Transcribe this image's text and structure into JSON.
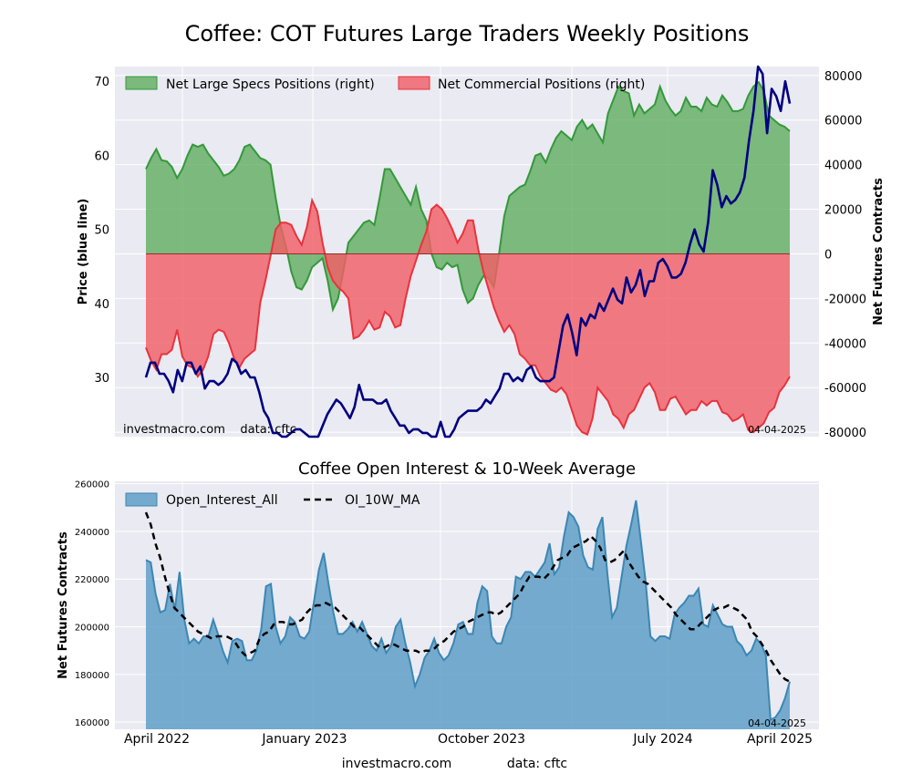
{
  "figure": {
    "title": "Coffee: COT Futures Large Traders Weekly Positions",
    "footer_site": "investmacro.com",
    "footer_source": "data: cftc"
  },
  "chart_data": [
    {
      "type": "area",
      "title": "Coffee: COT Futures Large Traders Weekly Positions",
      "ylabel_left": "Price (blue line)",
      "ylabel_right": "Net Futures Contracts",
      "ylim_left": [
        22,
        72
      ],
      "ylim_right": [
        -82000,
        84000
      ],
      "yticks_left": [
        "30",
        "40",
        "50",
        "60",
        "70"
      ],
      "yticks_right": [
        "-80000",
        "-60000",
        "-40000",
        "-20000",
        "0",
        "20000",
        "40000",
        "60000",
        "80000"
      ],
      "x_range": [
        "2022-03-18",
        "2025-04-04"
      ],
      "legend": [
        "Net Large Specs Positions (right)",
        "Net Commercial Positions (right)"
      ],
      "legend_placement": "top-left",
      "watermark": "investmacro.com    data: cftc",
      "date_label": "04-04-2025",
      "grid": true,
      "colors": {
        "specs": "#55a855",
        "commercials": "#f25f66",
        "price": "#000080"
      },
      "series": [
        {
          "name": "Net Large Specs Positions (right)",
          "values": [
            38000,
            43000,
            47000,
            42000,
            41500,
            39000,
            34000,
            38000,
            44000,
            49000,
            48000,
            49000,
            45000,
            42000,
            39000,
            35000,
            36000,
            38000,
            42000,
            48000,
            49000,
            46000,
            43000,
            42000,
            40000,
            25000,
            12000,
            3000,
            -8000,
            -15000,
            -16000,
            -12000,
            -6000,
            -4000,
            -2000,
            -12000,
            -25000,
            -20000,
            -8000,
            5000,
            8000,
            11000,
            14000,
            15000,
            13000,
            25000,
            38000,
            38000,
            34000,
            30000,
            26000,
            22000,
            30000,
            20000,
            15000,
            0,
            -6000,
            -7000,
            -4000,
            -6000,
            -5000,
            -16000,
            -22000,
            -20000,
            -14000,
            -10000,
            -11000,
            -15000,
            0,
            17000,
            26000,
            28000,
            30000,
            31000,
            37000,
            44000,
            45000,
            41000,
            47000,
            52000,
            55000,
            53000,
            51000,
            57000,
            60000,
            56000,
            58000,
            54000,
            50000,
            63000,
            69000,
            75000,
            73000,
            72000,
            62000,
            67000,
            63000,
            65000,
            67000,
            75000,
            69000,
            65000,
            62000,
            64000,
            70000,
            66000,
            66000,
            64000,
            70000,
            67000,
            66000,
            71000,
            68000,
            64000,
            64000,
            65000,
            71000,
            75000,
            77000,
            73000,
            62000,
            60000,
            58000,
            57000,
            55000
          ],
          "values_note": "Weekly net contracts, April 2022 through 04-04-2025"
        },
        {
          "name": "Net Commercial Positions (right)",
          "values": [
            -42000,
            -48000,
            -52000,
            -45000,
            -45000,
            -43000,
            -34000,
            -46000,
            -50000,
            -51000,
            -55000,
            -52000,
            -46000,
            -36000,
            -34000,
            -35000,
            -40000,
            -47000,
            -51000,
            -47000,
            -45000,
            -43000,
            -22000,
            -12000,
            -1000,
            11000,
            14000,
            14000,
            13000,
            8000,
            4000,
            12000,
            24000,
            19000,
            5000,
            -6000,
            -12000,
            -15000,
            -17000,
            -20000,
            -38000,
            -37000,
            -34000,
            -30000,
            -34000,
            -33000,
            -26000,
            -28000,
            -33000,
            -32000,
            -20000,
            -10000,
            -3000,
            4000,
            10000,
            20000,
            22000,
            20000,
            16000,
            11000,
            5000,
            9000,
            15000,
            15000,
            2000,
            -8000,
            -16000,
            -24000,
            -30000,
            -35000,
            -32000,
            -36000,
            -45000,
            -47000,
            -50000,
            -50000,
            -55000,
            -58000,
            -61000,
            -62000,
            -60000,
            -63000,
            -70000,
            -77000,
            -80000,
            -81000,
            -74000,
            -60000,
            -63000,
            -66000,
            -72000,
            -74000,
            -78000,
            -72000,
            -70000,
            -65000,
            -60000,
            -58000,
            -62000,
            -70000,
            -70000,
            -65000,
            -64000,
            -68000,
            -72000,
            -70000,
            -70000,
            -66000,
            -68000,
            -66000,
            -66000,
            -71000,
            -72000,
            -75000,
            -74000,
            -72000,
            -79000,
            -80000,
            -78000,
            -76000,
            -71000,
            -69000,
            -62000,
            -59000,
            -55000
          ],
          "values_note": "Weekly net contracts, April 2022 through 04-04-2025"
        },
        {
          "name": "Price",
          "values": [
            30.0,
            32.0,
            32.0,
            30.5,
            30.5,
            29.5,
            28.0,
            31.0,
            29.5,
            32.0,
            32.0,
            30.5,
            31.5,
            28.5,
            29.5,
            29.5,
            29.0,
            29.5,
            30.5,
            32.5,
            32.0,
            30.5,
            31.0,
            30.0,
            30.0,
            28.0,
            25.5,
            24.5,
            22.5,
            22.5,
            21.5,
            21.5,
            22.5,
            23.0,
            23.0,
            22.5,
            20.5,
            20.5,
            21.5,
            23.5,
            25.0,
            26.0,
            27.0,
            26.5,
            25.5,
            24.5,
            26.0,
            29.0,
            27.0,
            27.0,
            27.0,
            26.5,
            26.5,
            27.0,
            25.5,
            24.5,
            23.5,
            23.5,
            22.5,
            23.0,
            23.0,
            22.5,
            22.5,
            22.0,
            22.0,
            24.0,
            22.0,
            22.0,
            23.0,
            24.5,
            25.0,
            25.5,
            25.5,
            25.5,
            26.0,
            27.0,
            26.5,
            27.5,
            28.5,
            30.5,
            30.5,
            29.5,
            30.0,
            29.5,
            31.0,
            31.5,
            30.0,
            29.5,
            29.5,
            29.5,
            30.0,
            33.5,
            37.0,
            38.5,
            36.0,
            33.0,
            38.0,
            37.0,
            38.5,
            38.0,
            40.0,
            39.0,
            40.5,
            42.0,
            40.5,
            40.0,
            43.5,
            41.5,
            42.5,
            44.5,
            41.0,
            43.0,
            43.0,
            45.5,
            46.0,
            45.0,
            43.5,
            43.5,
            44.0,
            45.5,
            48.0,
            50.0,
            48.0,
            47.0,
            51.0,
            58.0,
            56.0,
            53.0,
            54.5,
            53.5,
            54.0,
            55.0,
            57.0,
            62.0,
            66.0,
            72.0,
            71.0,
            63.0,
            69.0,
            68.0,
            66.0,
            70.0,
            67.0
          ],
          "values_note": "Coffee price, blue line on left axis"
        }
      ]
    },
    {
      "type": "area",
      "title": "Coffee Open Interest & 10-Week Average",
      "ylabel": "Net Futures Contracts",
      "ylim": [
        157000,
        261000
      ],
      "yticks": [
        "160000",
        "180000",
        "200000",
        "220000",
        "240000",
        "260000"
      ],
      "xticks": [
        "April 2022",
        "January 2023",
        "October 2023",
        "July 2024",
        "April 2025"
      ],
      "legend": [
        "Open_Interest_All",
        "OI_10W_MA"
      ],
      "legend_placement": "top-left",
      "date_label": "04-04-2025",
      "grid": true,
      "colors": {
        "oi_fill": "#5f9fc7",
        "oi_line": "#3b87b4",
        "ma_line": "#000000"
      },
      "series": [
        {
          "name": "Open_Interest_All",
          "values": [
            228000,
            227000,
            214000,
            206000,
            207000,
            218000,
            207000,
            223000,
            203000,
            193000,
            195000,
            193000,
            196000,
            196000,
            203000,
            197000,
            190000,
            185000,
            194000,
            195000,
            194000,
            186000,
            186000,
            190000,
            199000,
            217000,
            218000,
            200000,
            193000,
            196000,
            204000,
            202000,
            196000,
            195000,
            198000,
            211000,
            224000,
            231000,
            218000,
            206000,
            197000,
            197000,
            199000,
            202000,
            198000,
            202000,
            197000,
            192000,
            190000,
            195000,
            189000,
            192000,
            200000,
            203000,
            193000,
            185000,
            175000,
            180000,
            187000,
            190000,
            195000,
            189000,
            186000,
            188000,
            193000,
            201000,
            202000,
            197000,
            197000,
            210000,
            217000,
            215000,
            196000,
            193000,
            193000,
            200000,
            204000,
            221000,
            220000,
            223000,
            223000,
            221000,
            224000,
            227000,
            235000,
            222000,
            225000,
            238000,
            248000,
            246000,
            242000,
            230000,
            225000,
            224000,
            241000,
            246000,
            223000,
            204000,
            208000,
            221000,
            234000,
            243000,
            253000,
            236000,
            219000,
            196000,
            194000,
            196000,
            196000,
            195000,
            205000,
            208000,
            210000,
            213000,
            213000,
            216000,
            201000,
            200000,
            209000,
            205000,
            201000,
            200000,
            200000,
            194000,
            192000,
            188000,
            190000,
            195000,
            193000,
            188000,
            161000,
            162000,
            165000,
            170000,
            177000
          ],
          "values_note": "Weekly open interest"
        },
        {
          "name": "OI_10W_MA",
          "values": [
            248000,
            243000,
            235000,
            229000,
            221000,
            214000,
            208000,
            206000,
            204000,
            202000,
            200000,
            198000,
            197000,
            196000,
            195000,
            196000,
            196000,
            196000,
            195000,
            193000,
            190000,
            188000,
            189000,
            190000,
            195000,
            197000,
            198000,
            201000,
            202000,
            202000,
            201000,
            201000,
            202000,
            203000,
            206000,
            208000,
            209000,
            209000,
            210000,
            209000,
            208000,
            206000,
            204000,
            202000,
            200000,
            200000,
            198000,
            196000,
            194000,
            192000,
            191000,
            192000,
            193000,
            192000,
            191000,
            190000,
            190000,
            190000,
            189000,
            190000,
            190000,
            191000,
            193000,
            194000,
            196000,
            198000,
            199000,
            200000,
            202000,
            203000,
            204000,
            205000,
            206000,
            206000,
            205000,
            206000,
            208000,
            210000,
            212000,
            214000,
            218000,
            221000,
            221000,
            221000,
            220000,
            222000,
            225000,
            228000,
            229000,
            230000,
            233000,
            234000,
            235000,
            236000,
            238000,
            236000,
            233000,
            228000,
            227000,
            228000,
            230000,
            232000,
            227000,
            224000,
            221000,
            219000,
            218000,
            216000,
            214000,
            212000,
            210000,
            208000,
            205000,
            203000,
            201000,
            199000,
            199000,
            201000,
            203000,
            205000,
            207000,
            208000,
            208000,
            209000,
            208000,
            207000,
            205000,
            203000,
            198000,
            196000,
            193000,
            190000,
            186000,
            183000,
            180000,
            178000,
            177000
          ],
          "values_note": "10-week moving average of open interest"
        }
      ]
    }
  ]
}
